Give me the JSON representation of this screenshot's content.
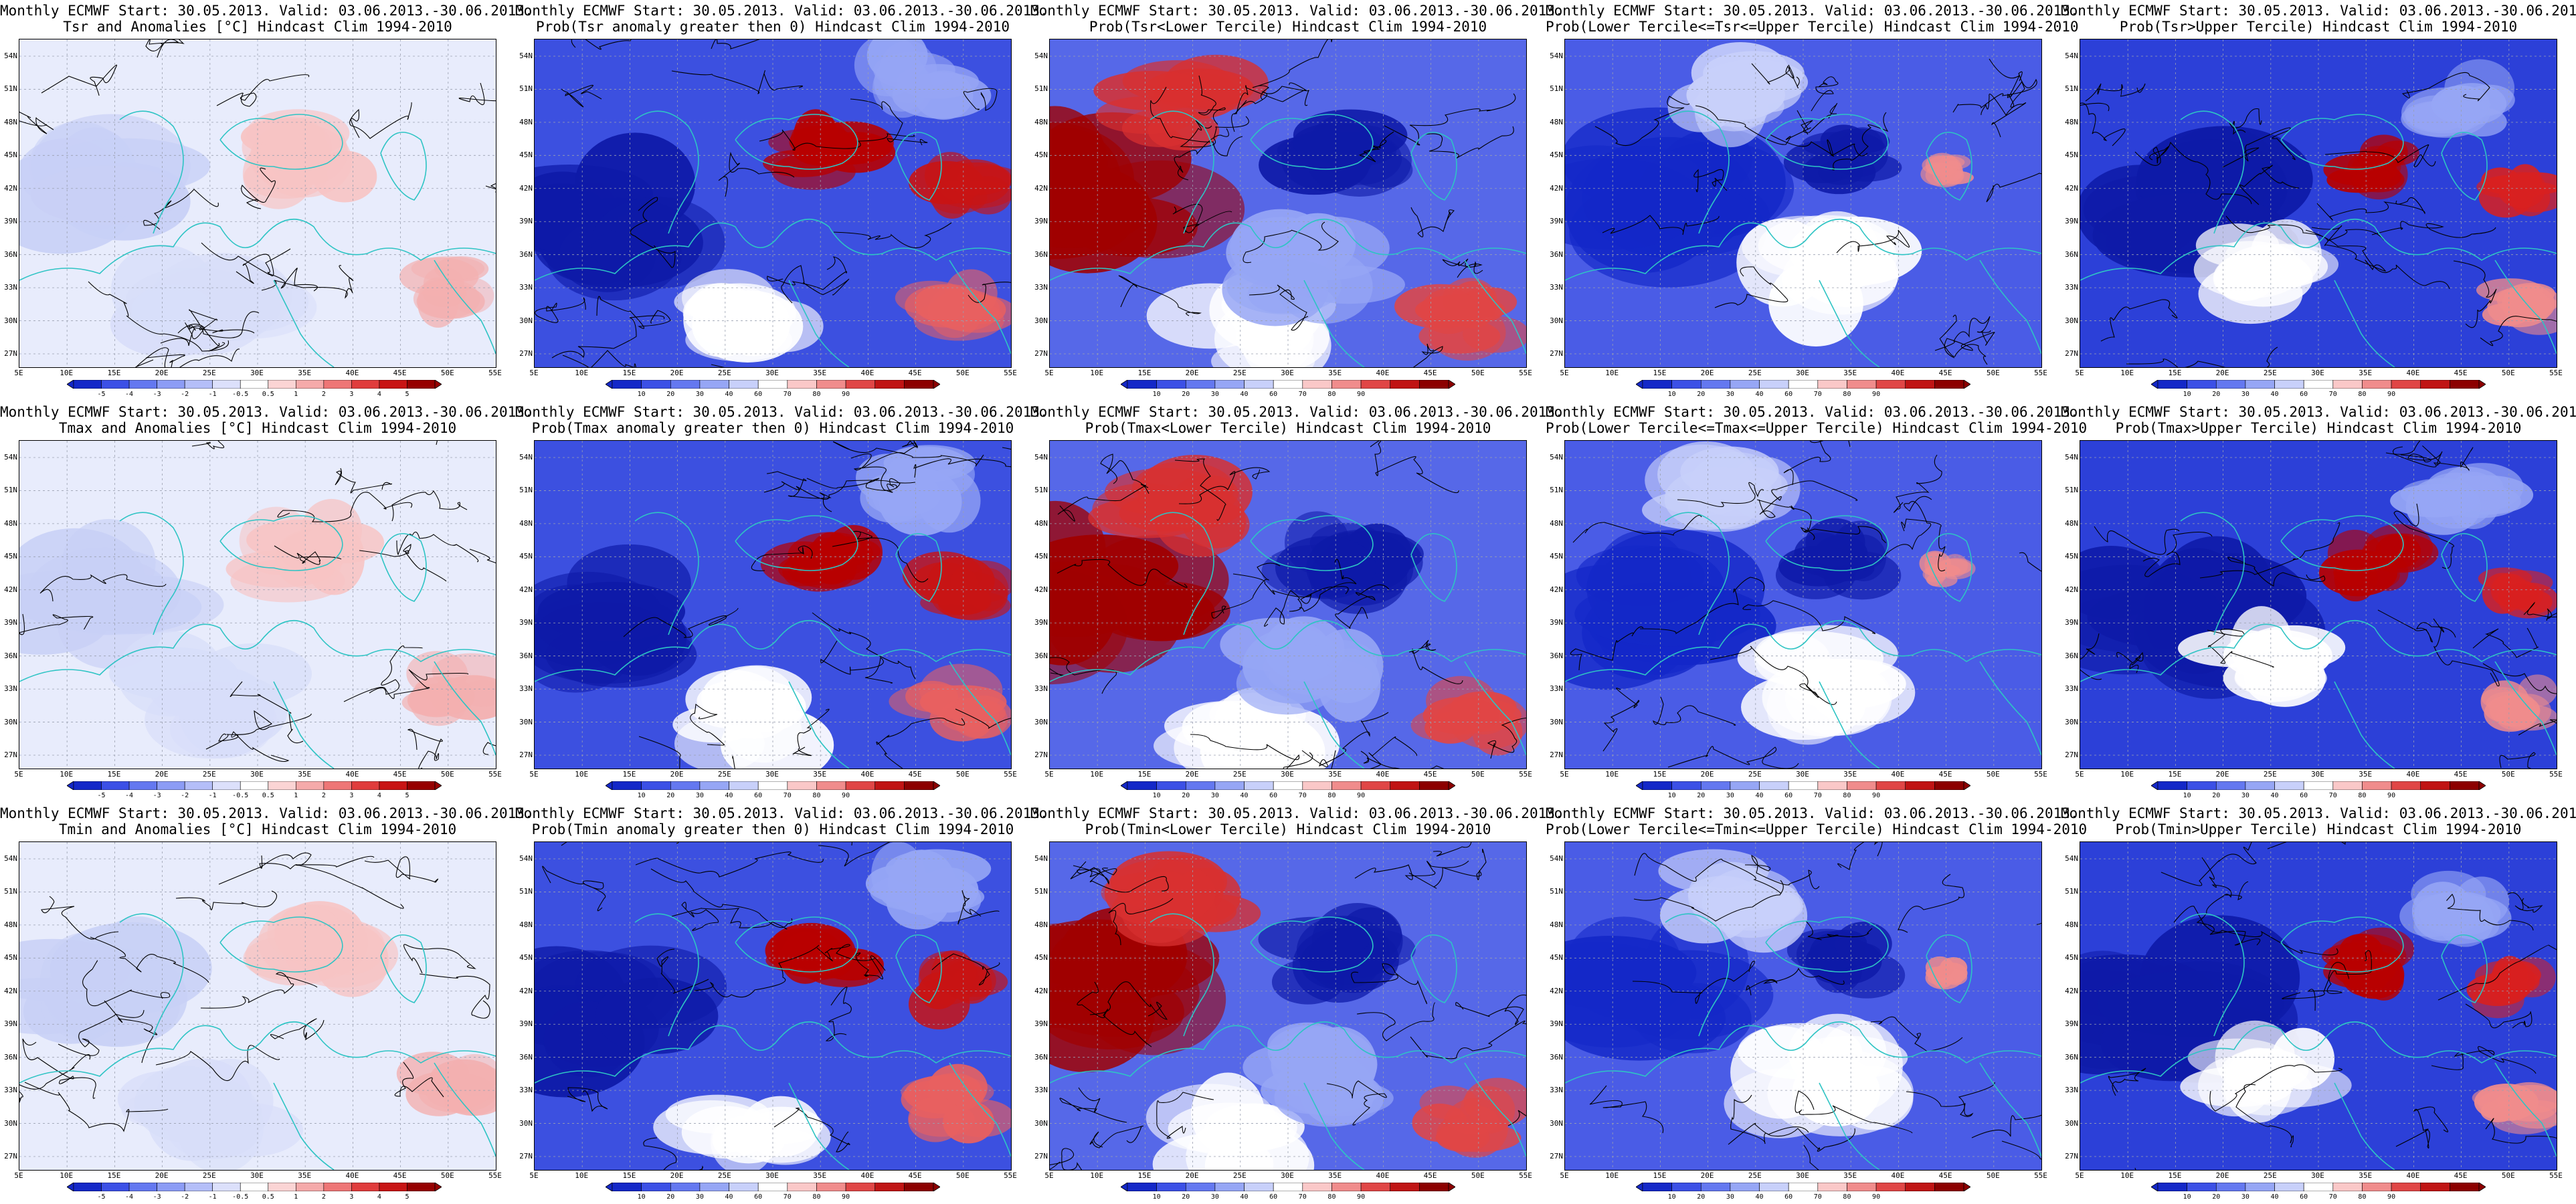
{
  "header": {
    "line1": "Monthly ECMWF Start: 30.05.2013. Valid: 03.06.2013.-30.06.2013."
  },
  "rows": [
    {
      "variable": "Tsr",
      "titles": [
        "Tsr and Anomalies [°C] Hindcast Clim 1994-2010",
        "Prob(Tsr anomaly greater then 0) Hindcast Clim 1994-2010",
        "Prob(Tsr<Lower Tercile) Hindcast Clim 1994-2010",
        "Prob(Lower Tercile<=Tsr<=Upper Tercile) Hindcast Clim 1994-2010",
        "Prob(Tsr>Upper Tercile) Hindcast Clim 1994-2010"
      ]
    },
    {
      "variable": "Tmax",
      "titles": [
        "Tmax and Anomalies [°C] Hindcast Clim 1994-2010",
        "Prob(Tmax anomaly greater then 0) Hindcast Clim 1994-2010",
        "Prob(Tmax<Lower Tercile) Hindcast Clim 1994-2010",
        "Prob(Lower Tercile<=Tmax<=Upper Tercile) Hindcast Clim 1994-2010",
        "Prob(Tmax>Upper Tercile) Hindcast Clim 1994-2010"
      ]
    },
    {
      "variable": "Tmin",
      "titles": [
        "Tmin and Anomalies [°C] Hindcast Clim 1994-2010",
        "Prob(Tmin anomaly greater then 0) Hindcast Clim 1994-2010",
        "Prob(Tmin<Lower Tercile) Hindcast Clim 1994-2010",
        "Prob(Lower Tercile<=Tmin<=Upper Tercile) Hindcast Clim 1994-2010",
        "Prob(Tmin>Upper Tercile) Hindcast Clim 1994-2010"
      ]
    }
  ],
  "axes": {
    "lat_labels": [
      "54N",
      "51N",
      "48N",
      "45N",
      "42N",
      "39N",
      "36N",
      "33N",
      "30N",
      "27N"
    ],
    "lon_labels": [
      "5E",
      "10E",
      "15E",
      "20E",
      "25E",
      "30E",
      "35E",
      "40E",
      "45E",
      "50E",
      "55E"
    ]
  },
  "colorbars": {
    "anomaly": {
      "labels": [
        "-5",
        "-4",
        "-3",
        "-2",
        "-1",
        "-0.5",
        "0.5",
        "1",
        "2",
        "3",
        "4",
        "5"
      ],
      "colors": [
        "#1428c8",
        "#3c50e6",
        "#6478f0",
        "#8c9cf5",
        "#b4bef8",
        "#dce0fb",
        "#ffffff",
        "#fbd4d4",
        "#f5aaaa",
        "#ee7676",
        "#e03c3c",
        "#c81414",
        "#960000"
      ]
    },
    "probability": {
      "labels": [
        "10",
        "20",
        "30",
        "40",
        "60",
        "70",
        "80",
        "90"
      ],
      "colors": [
        "#1428c8",
        "#3c50e6",
        "#6478f0",
        "#96a6f5",
        "#c8d0fa",
        "#ffffff",
        "#fac8c8",
        "#f08c8c",
        "#e04646",
        "#c01414",
        "#8c0000"
      ]
    }
  },
  "palette": {
    "coast": "#2ec4c4",
    "contour": "#000000",
    "warm": "#c01414",
    "cool": "#1430c8"
  }
}
